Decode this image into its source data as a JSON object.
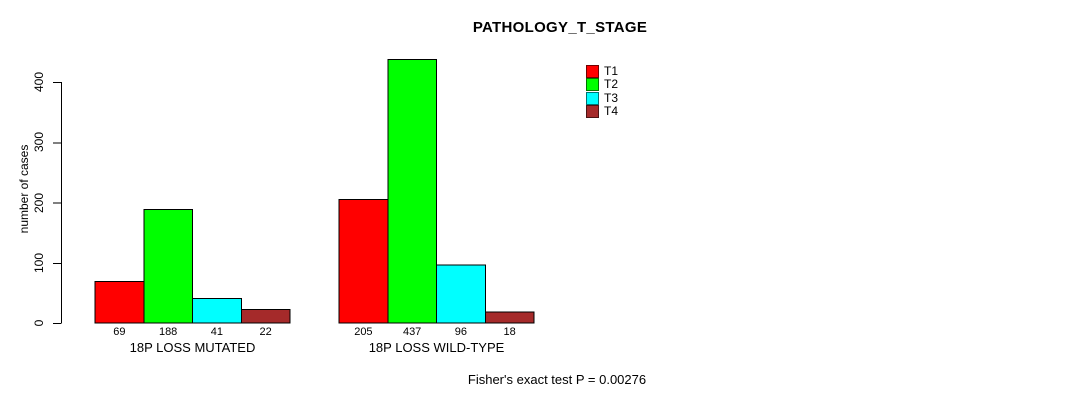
{
  "chart_data": {
    "type": "bar",
    "title": "PATHOLOGY_T_STAGE",
    "xlabel": "",
    "ylabel": "number of cases",
    "ylim": [
      0,
      440
    ],
    "yticks": [
      0,
      100,
      200,
      300,
      400
    ],
    "grid": false,
    "legend_position": "top-right-inside",
    "categories": [
      "18P LOSS MUTATED",
      "18P LOSS WILD-TYPE"
    ],
    "series": [
      {
        "name": "T1",
        "color": "#FF0000",
        "values": [
          69,
          205
        ]
      },
      {
        "name": "T2",
        "color": "#00FF00",
        "values": [
          188,
          437
        ]
      },
      {
        "name": "T3",
        "color": "#00FFFF",
        "values": [
          41,
          96
        ]
      },
      {
        "name": "T4",
        "color": "#A52A2A",
        "values": [
          22,
          18
        ]
      }
    ],
    "bar_border_color": "#000000",
    "show_bar_value_labels": true,
    "annotation": "Fisher's exact test P = 0.00276"
  }
}
